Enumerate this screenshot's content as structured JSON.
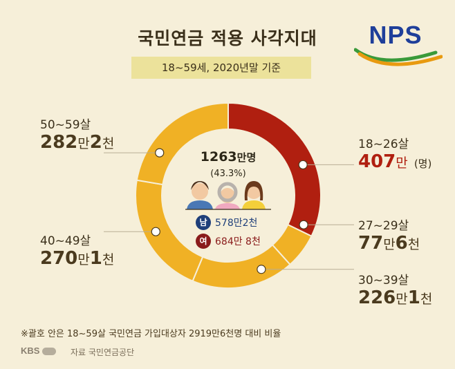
{
  "header": {
    "title": "국민연금 적용 사각지대",
    "subtitle": "18~59세, 2020년말 기준"
  },
  "logo": {
    "text": "NPS",
    "colors": {
      "text": "#1f3f9a",
      "swoosh_green": "#3a9a3a",
      "swoosh_orange": "#e89a10"
    }
  },
  "center": {
    "total_value": "1263",
    "total_unit": "만명",
    "share": "(43.3%)",
    "male_badge": "남",
    "male_value": "578만2천",
    "female_badge": "여",
    "female_value": "684만 8천"
  },
  "chart_data": {
    "type": "pie",
    "donut": true,
    "unit": "만명",
    "categories": [
      "18~26살",
      "27~29살",
      "30~39살",
      "40~49살",
      "50~59살"
    ],
    "values": [
      407,
      77.6,
      226.1,
      270.1,
      282.2
    ],
    "colors": [
      "#b01f10",
      "#f0b125",
      "#f0b125",
      "#f0b125",
      "#f0b125"
    ],
    "slice_labels": [
      {
        "age": "18~26살",
        "num": "407",
        "unit": "만",
        "suffix": "(명)"
      },
      {
        "age": "27~29살",
        "num": "77",
        "unit": "만",
        "num2": "6",
        "unit2": "천"
      },
      {
        "age": "30~39살",
        "num": "226",
        "unit": "만",
        "num2": "1",
        "unit2": "천"
      },
      {
        "age": "40~49살",
        "num": "270",
        "unit": "만",
        "num2": "1",
        "unit2": "천"
      },
      {
        "age": "50~59살",
        "num": "282",
        "unit": "만",
        "num2": "2",
        "unit2": "천"
      }
    ]
  },
  "footer": {
    "note": "※괄호 안은 18~59살 국민연금 가입대상자 2919만6천명 대비 비율",
    "broadcaster": "KBS",
    "source": "자료 국민연금공단"
  }
}
